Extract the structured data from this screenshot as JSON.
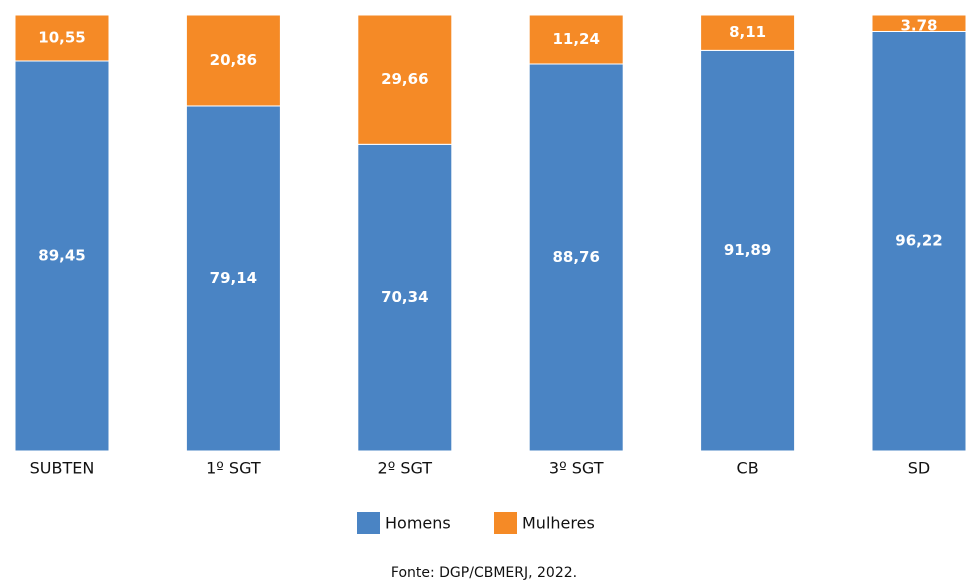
{
  "chart_data": {
    "type": "stacked_bar",
    "categories": [
      "SUBTEN",
      "1º SGT",
      "2º SGT",
      "3º SGT",
      "CB",
      "SD"
    ],
    "series": [
      {
        "name": "Homens",
        "color": "#4a84c4",
        "values": [
          89.45,
          79.14,
          70.34,
          88.76,
          91.89,
          96.22
        ],
        "value_labels": [
          "89,45",
          "79,14",
          "70,34",
          "88,76",
          "91,89",
          "96,22"
        ]
      },
      {
        "name": "Mulheres",
        "color": "#f58a26",
        "values": [
          10.55,
          20.86,
          29.66,
          11.24,
          8.11,
          3.78
        ],
        "value_labels": [
          "10,55",
          "20,86",
          "29,66",
          "11,24",
          "8,11",
          "3.78"
        ]
      }
    ],
    "ylim": [
      0,
      100
    ],
    "source": "Fonte: DGP/CBMERJ, 2022."
  }
}
